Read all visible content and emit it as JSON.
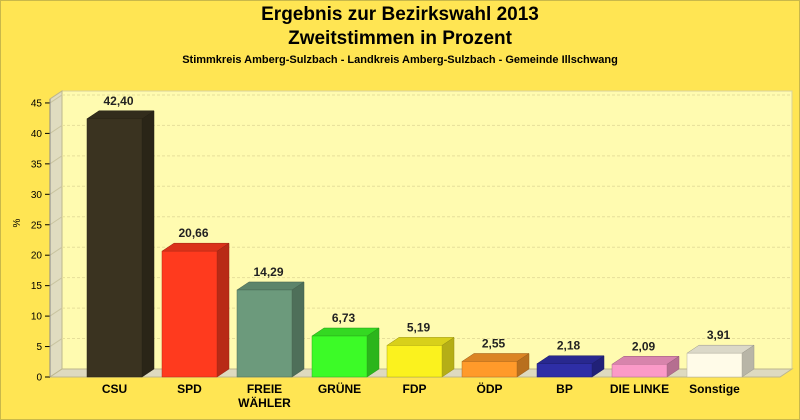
{
  "chart_data": {
    "type": "bar",
    "title": "Ergebnis zur Bezirkswahl 2013",
    "subtitle": "Zweitstimmen in Prozent",
    "caption": "Stimmkreis Amberg-Sulzbach - Landkreis Amberg-Sulzbach - Gemeinde Illschwang",
    "ylabel": "%",
    "xlabel": "",
    "ylim": [
      0,
      45
    ],
    "yticks": [
      0,
      5,
      10,
      15,
      20,
      25,
      30,
      35,
      40,
      45
    ],
    "grid": true,
    "categories": [
      {
        "label": [
          "CSU"
        ],
        "value": 42.4,
        "value_label": "42,40",
        "color": "#3a3320"
      },
      {
        "label": [
          "SPD"
        ],
        "value": 20.66,
        "value_label": "20,66",
        "color": "#ff3a1e"
      },
      {
        "label": [
          "FREIE",
          "WÄHLER"
        ],
        "value": 14.29,
        "value_label": "14,29",
        "color": "#6c9a7c"
      },
      {
        "label": [
          "GRÜNE"
        ],
        "value": 6.73,
        "value_label": "6,73",
        "color": "#3cfb27"
      },
      {
        "label": [
          "FDP"
        ],
        "value": 5.19,
        "value_label": "5,19",
        "color": "#fbf21e"
      },
      {
        "label": [
          "ÖDP"
        ],
        "value": 2.55,
        "value_label": "2,55",
        "color": "#ff9a2a"
      },
      {
        "label": [
          "BP"
        ],
        "value": 2.18,
        "value_label": "2,18",
        "color": "#2e2ea6"
      },
      {
        "label": [
          "DIE LINKE"
        ],
        "value": 2.09,
        "value_label": "2,09",
        "color": "#fb9ac8"
      },
      {
        "label": [
          "Sonstige"
        ],
        "value": 3.91,
        "value_label": "3,91",
        "color": "#fffbe8"
      }
    ],
    "background_color": "#ffe553",
    "plot_color": "#fffbb0"
  }
}
